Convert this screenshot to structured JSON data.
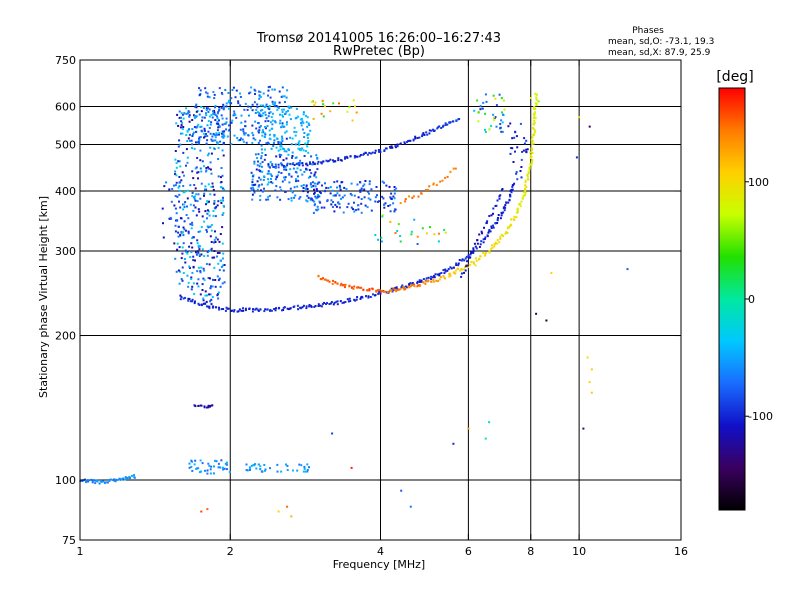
{
  "header": {
    "title_line1": "Tromsø 20141005 16:26:00–16:27:43",
    "title_line2": "RwPretec (Bp)"
  },
  "stats": {
    "heading": "Phases",
    "line_o": "mean, sd,O: -73.1, 19.3",
    "line_x": "mean, sd,X:  87.9, 25.9"
  },
  "colorbar": {
    "label": "[deg]",
    "ticks": [
      {
        "value": 100,
        "label": "100"
      },
      {
        "value": 0,
        "label": "0"
      },
      {
        "value": -100,
        "label": "-100"
      }
    ],
    "range": [
      -180,
      180
    ],
    "colors": [
      "#000000",
      "#3a0060",
      "#1010c8",
      "#1a6cff",
      "#00c8ff",
      "#00e8a0",
      "#22e000",
      "#c8ff00",
      "#ffd000",
      "#ff7a00",
      "#ff0000"
    ]
  },
  "chart_data": {
    "type": "scatter",
    "title": "Tromsø 20141005 16:26:00–16:27:43",
    "subtitle": "RwPretec (Bp)",
    "xlabel": "Frequency [MHz]",
    "ylabel": "Stationary phase Virtual Height [km]",
    "x_scale": "log",
    "y_scale": "log",
    "xlim": [
      1,
      16
    ],
    "ylim": [
      75,
      750
    ],
    "grid": true,
    "x_ticks": [
      {
        "value": 1,
        "label": "1"
      },
      {
        "value": 2,
        "label": "2"
      },
      {
        "value": 4,
        "label": "4"
      },
      {
        "value": 6,
        "label": "6"
      },
      {
        "value": 8,
        "label": "8"
      },
      {
        "value": 10,
        "label": "10"
      },
      {
        "value": 16,
        "label": "16"
      }
    ],
    "x_grid": [
      2,
      4,
      6,
      8,
      10
    ],
    "y_ticks": [
      {
        "value": 75,
        "label": "75"
      },
      {
        "value": 100,
        "label": "100"
      },
      {
        "value": 200,
        "label": "200"
      },
      {
        "value": 300,
        "label": "300"
      },
      {
        "value": 400,
        "label": "400"
      },
      {
        "value": 500,
        "label": "500"
      },
      {
        "value": 600,
        "label": "600"
      },
      {
        "value": 750,
        "label": "750"
      }
    ],
    "y_grid": [
      100,
      200,
      300,
      400,
      500,
      600
    ],
    "color_variable": "phase [deg]",
    "traces": [
      {
        "kind": "curve",
        "x": [
          1.6,
          1.75,
          1.9,
          2.1,
          2.4,
          2.8,
          3.3,
          3.9,
          4.5,
          5.1,
          5.6,
          6.0,
          6.3,
          6.6,
          6.9,
          7.1,
          7.3,
          7.45
        ],
        "y": [
          240,
          232,
          227,
          226,
          227,
          229,
          234,
          243,
          253,
          265,
          278,
          292,
          308,
          327,
          350,
          372,
          395,
          420
        ],
        "phase": [
          -100,
          -100,
          -100,
          -100,
          -100,
          -100,
          -100,
          -100,
          -100,
          -100,
          -100,
          -100,
          -100,
          -100,
          -100,
          -100,
          -100,
          -100
        ],
        "spread": 0.012,
        "repeat": 2
      },
      {
        "kind": "curve",
        "x": [
          4.2,
          4.8,
          5.4,
          6.0,
          6.6,
          7.1,
          7.5,
          7.8,
          8.0,
          8.1,
          8.15,
          8.2
        ],
        "y": [
          248,
          255,
          265,
          280,
          300,
          325,
          360,
          400,
          460,
          520,
          580,
          650
        ],
        "phase": [
          140,
          150,
          115,
          105,
          100,
          95,
          90,
          90,
          90,
          88,
          85,
          80
        ],
        "spread": 0.012,
        "repeat": 2
      },
      {
        "kind": "curve",
        "x": [
          3.0,
          3.2,
          3.5,
          3.8,
          4.2
        ],
        "y": [
          265,
          258,
          252,
          249,
          247
        ],
        "phase": [
          150,
          150,
          155,
          160,
          150
        ],
        "spread": 0.01,
        "repeat": 2
      },
      {
        "kind": "curve",
        "x": [
          2.4,
          2.8,
          3.3,
          3.9,
          4.4,
          4.9,
          5.4,
          5.8
        ],
        "y": [
          450,
          455,
          465,
          482,
          500,
          525,
          550,
          570
        ],
        "phase": [
          -90,
          -95,
          -100,
          -100,
          -100,
          -100,
          -95,
          -90
        ],
        "spread": 0.01,
        "repeat": 2
      },
      {
        "kind": "curve",
        "x": [
          4.4,
          4.8,
          5.2,
          5.5,
          5.7
        ],
        "y": [
          380,
          395,
          415,
          435,
          450
        ],
        "phase": [
          140,
          150,
          145,
          140,
          135
        ],
        "spread": 0.012,
        "repeat": 1
      },
      {
        "kind": "curve",
        "x": [
          5.8,
          6.0,
          6.2,
          6.5,
          6.8,
          7.1
        ],
        "y": [
          265,
          285,
          310,
          340,
          375,
          410
        ],
        "phase": [
          -105,
          -110,
          -110,
          -110,
          -105,
          -100
        ],
        "spread": 0.012,
        "repeat": 1
      },
      {
        "kind": "curve",
        "x": [
          1.0,
          1.1,
          1.2,
          1.3
        ],
        "y": [
          100,
          99,
          100,
          102
        ],
        "phase": [
          -70,
          -60,
          -60,
          -50
        ],
        "spread": 0.01,
        "repeat": 3
      },
      {
        "kind": "curve",
        "x": [
          1.7,
          1.8,
          1.85
        ],
        "y": [
          143,
          142,
          143
        ],
        "phase": [
          -120,
          -120,
          -120
        ],
        "spread": 0.005,
        "repeat": 2
      },
      {
        "kind": "cloud",
        "x": [
          1.55,
          1.95
        ],
        "y": [
          232,
          600
        ],
        "n": 420,
        "phase": [
          -130,
          -20
        ]
      },
      {
        "kind": "cloud",
        "x": [
          1.7,
          2.6
        ],
        "y": [
          500,
          660
        ],
        "n": 260,
        "phase": [
          -100,
          -40
        ]
      },
      {
        "kind": "cloud",
        "x": [
          2.3,
          2.9
        ],
        "y": [
          480,
          610
        ],
        "n": 120,
        "phase": [
          -60,
          -30
        ]
      },
      {
        "kind": "cloud",
        "x": [
          2.2,
          3.0
        ],
        "y": [
          380,
          480
        ],
        "n": 180,
        "phase": [
          -110,
          -40
        ]
      },
      {
        "kind": "cloud",
        "x": [
          2.9,
          4.3
        ],
        "y": [
          360,
          420
        ],
        "n": 150,
        "phase": [
          -110,
          -50
        ]
      },
      {
        "kind": "cloud",
        "x": [
          1.45,
          1.7
        ],
        "y": [
          300,
          420
        ],
        "n": 40,
        "phase": [
          -120,
          -60
        ]
      },
      {
        "kind": "cloud",
        "x": [
          1.65,
          2.0
        ],
        "y": [
          103,
          110
        ],
        "n": 40,
        "phase": [
          -80,
          -40
        ]
      },
      {
        "kind": "cloud",
        "x": [
          2.15,
          2.9
        ],
        "y": [
          104,
          108
        ],
        "n": 40,
        "phase": [
          -70,
          -40
        ]
      },
      {
        "kind": "cloud",
        "x": [
          6.1,
          7.1
        ],
        "y": [
          530,
          640
        ],
        "n": 40,
        "phase": [
          -110,
          100
        ]
      },
      {
        "kind": "cloud",
        "x": [
          7.2,
          7.9
        ],
        "y": [
          420,
          560
        ],
        "n": 30,
        "phase": [
          -120,
          -80
        ]
      },
      {
        "kind": "cloud",
        "x": [
          3.8,
          5.6
        ],
        "y": [
          310,
          360
        ],
        "n": 25,
        "phase": [
          -80,
          150
        ]
      },
      {
        "kind": "cloud",
        "x": [
          2.9,
          3.6
        ],
        "y": [
          560,
          620
        ],
        "n": 20,
        "phase": [
          20,
          150
        ]
      },
      {
        "kind": "points",
        "x": [
          10.4,
          10.6,
          10.5,
          10.6,
          12.5,
          10.2,
          8.6,
          8.2,
          8.8,
          6.6,
          6.5,
          2.6,
          2.5,
          2.65,
          1.75,
          1.8,
          3.5,
          3.2,
          4.4,
          4.6,
          5.6,
          6.0,
          6.2,
          8.0,
          8.3,
          10.0,
          10.5,
          9.9
        ],
        "y": [
          180,
          170,
          160,
          152,
          275,
          128,
          215,
          222,
          270,
          132,
          122,
          88,
          86,
          84,
          86,
          87,
          106,
          125,
          95,
          88,
          119,
          128,
          280,
          625,
          615,
          570,
          545,
          470
        ],
        "phase": [
          100,
          110,
          105,
          110,
          -80,
          -130,
          -160,
          -150,
          100,
          -20,
          0,
          150,
          100,
          120,
          160,
          150,
          170,
          -90,
          -80,
          -70,
          -100,
          130,
          90,
          80,
          60,
          100,
          -150,
          -100
        ]
      }
    ]
  }
}
